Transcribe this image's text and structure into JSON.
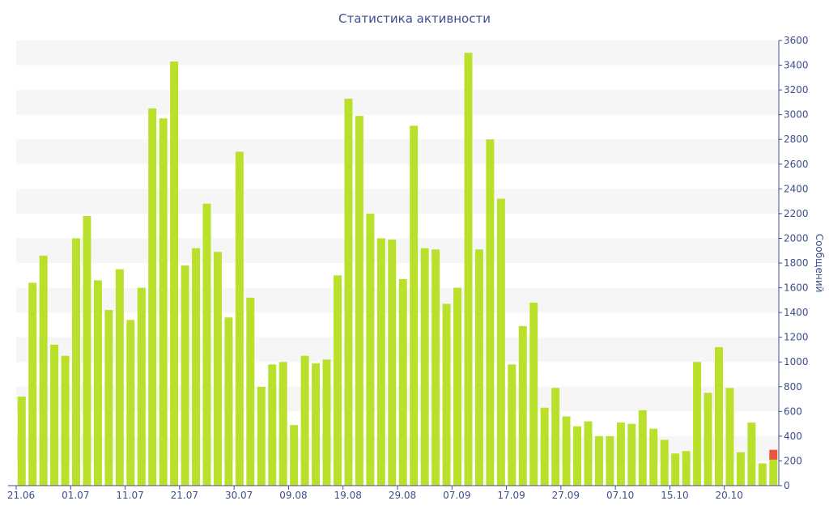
{
  "chart_data": {
    "type": "bar",
    "title": "Статистика активности",
    "ylabel": "Сообщений",
    "xlabel": "",
    "ylim": [
      0,
      3600
    ],
    "y_ticks": [
      0,
      200,
      400,
      600,
      800,
      1000,
      1200,
      1400,
      1600,
      1800,
      2000,
      2200,
      2400,
      2600,
      2800,
      3000,
      3200,
      3400,
      3600
    ],
    "y_axis_position": "right",
    "grid": "horizontal bands",
    "x_tick_labels": [
      "21.06",
      "01.07",
      "11.07",
      "21.07",
      "30.07",
      "09.08",
      "19.08",
      "29.08",
      "07.09",
      "17.09",
      "27.09",
      "07.10",
      "15.10",
      "20.10"
    ],
    "x_tick_bar_index": [
      0,
      5,
      10,
      15,
      20,
      25,
      30,
      35,
      40,
      45,
      50,
      55,
      60,
      65
    ],
    "values": [
      720,
      1640,
      1860,
      1140,
      1050,
      2000,
      2180,
      1660,
      1420,
      1750,
      1340,
      1600,
      3050,
      2970,
      3430,
      1780,
      1920,
      2280,
      1890,
      1360,
      2700,
      1520,
      800,
      980,
      1000,
      490,
      1050,
      990,
      1020,
      1700,
      3130,
      2990,
      2200,
      2000,
      1990,
      1670,
      2910,
      1920,
      1910,
      1470,
      1600,
      3500,
      1910,
      2800,
      2320,
      980,
      1290,
      1480,
      630,
      790,
      560,
      480,
      520,
      400,
      400,
      510,
      500,
      610,
      460,
      370,
      260,
      280,
      1000,
      750,
      1120,
      790,
      270,
      510,
      180,
      210
    ],
    "highlight_segment": {
      "bar_index": 69,
      "from": 210,
      "to": 290
    },
    "colors": {
      "bar": "#b9e02a",
      "highlight": "#e8553a",
      "text": "#3f4e8c",
      "band": "#f6f6f6",
      "axis": "#3f4e8c"
    }
  }
}
